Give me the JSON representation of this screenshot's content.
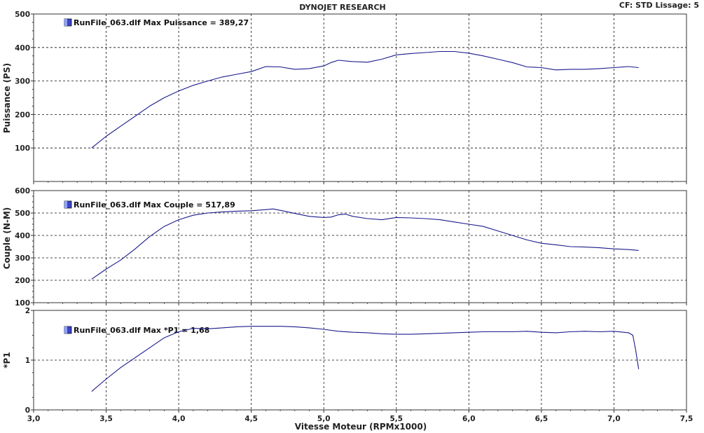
{
  "header": {
    "title": "DYNOJET RESEARCH",
    "status": "CF: STD  Lissage: 5"
  },
  "x_axis": {
    "label": "Vitesse Moteur (RPMx1000)",
    "ticks": [
      "3,0",
      "3,5",
      "4,0",
      "4,5",
      "5,0",
      "5,5",
      "6,0",
      "6,5",
      "7,0",
      "7,5"
    ],
    "range": [
      3.0,
      7.5
    ]
  },
  "colors": {
    "line": "#1a1a8c",
    "legend_box": "#3a44c8",
    "frame": "#333333",
    "grid": "#111111"
  },
  "chart_data": [
    {
      "type": "line",
      "ylabel": "Puissance (PS)",
      "legend": "RunFile_063.dlf Max Puissance = 389,27",
      "yticks": [
        "100",
        "200",
        "300",
        "400",
        "500"
      ],
      "ylim": [
        0,
        500
      ],
      "series": [
        {
          "name": "RunFile_063.dlf",
          "x": [
            3.4,
            3.5,
            3.6,
            3.7,
            3.8,
            3.9,
            4.0,
            4.1,
            4.2,
            4.3,
            4.4,
            4.5,
            4.6,
            4.7,
            4.8,
            4.9,
            5.0,
            5.05,
            5.1,
            5.2,
            5.3,
            5.4,
            5.5,
            5.6,
            5.7,
            5.8,
            5.9,
            6.0,
            6.1,
            6.2,
            6.3,
            6.4,
            6.5,
            6.6,
            6.7,
            6.8,
            6.9,
            7.0,
            7.1,
            7.17
          ],
          "values": [
            100,
            135,
            165,
            195,
            225,
            250,
            270,
            287,
            300,
            312,
            320,
            328,
            343,
            342,
            335,
            337,
            345,
            355,
            362,
            358,
            356,
            365,
            378,
            382,
            385,
            388,
            388,
            383,
            375,
            365,
            355,
            342,
            340,
            333,
            335,
            335,
            337,
            340,
            343,
            340
          ]
        }
      ]
    },
    {
      "type": "line",
      "ylabel": "Couple (N-M)",
      "legend": "RunFile_063.dlf Max Couple = 517,89",
      "yticks": [
        "100",
        "200",
        "300",
        "400",
        "500",
        "600"
      ],
      "ylim": [
        100,
        600
      ],
      "series": [
        {
          "name": "RunFile_063.dlf",
          "x": [
            3.4,
            3.5,
            3.6,
            3.7,
            3.8,
            3.9,
            4.0,
            4.1,
            4.2,
            4.3,
            4.4,
            4.5,
            4.6,
            4.65,
            4.7,
            4.8,
            4.9,
            5.0,
            5.05,
            5.1,
            5.15,
            5.2,
            5.3,
            5.4,
            5.5,
            5.6,
            5.7,
            5.8,
            5.9,
            6.0,
            6.1,
            6.2,
            6.3,
            6.4,
            6.5,
            6.6,
            6.7,
            6.8,
            6.9,
            7.0,
            7.1,
            7.17
          ],
          "values": [
            205,
            250,
            290,
            340,
            395,
            440,
            470,
            490,
            500,
            505,
            508,
            510,
            515,
            518,
            512,
            498,
            485,
            480,
            482,
            492,
            495,
            485,
            475,
            470,
            480,
            478,
            475,
            470,
            460,
            450,
            440,
            420,
            400,
            380,
            365,
            358,
            350,
            348,
            345,
            340,
            337,
            333
          ]
        }
      ]
    },
    {
      "type": "line",
      "ylabel": "*P1",
      "legend": "RunFile_063.dlf Max *P1 = 1,68",
      "yticks": [
        "0",
        "1",
        "2"
      ],
      "ylim": [
        0,
        2
      ],
      "series": [
        {
          "name": "RunFile_063.dlf",
          "x": [
            3.4,
            3.5,
            3.6,
            3.7,
            3.8,
            3.9,
            4.0,
            4.1,
            4.2,
            4.3,
            4.4,
            4.5,
            4.6,
            4.7,
            4.8,
            4.9,
            5.0,
            5.1,
            5.2,
            5.3,
            5.4,
            5.5,
            5.6,
            5.7,
            5.8,
            5.9,
            6.0,
            6.1,
            6.2,
            6.3,
            6.4,
            6.5,
            6.6,
            6.7,
            6.8,
            6.9,
            7.0,
            7.1,
            7.13,
            7.15,
            7.17
          ],
          "values": [
            0.37,
            0.62,
            0.85,
            1.05,
            1.25,
            1.45,
            1.57,
            1.64,
            1.63,
            1.65,
            1.67,
            1.68,
            1.68,
            1.68,
            1.67,
            1.65,
            1.62,
            1.58,
            1.56,
            1.55,
            1.53,
            1.52,
            1.52,
            1.53,
            1.54,
            1.55,
            1.56,
            1.57,
            1.57,
            1.57,
            1.58,
            1.56,
            1.55,
            1.57,
            1.58,
            1.57,
            1.58,
            1.55,
            1.5,
            1.2,
            0.82
          ]
        }
      ]
    }
  ]
}
